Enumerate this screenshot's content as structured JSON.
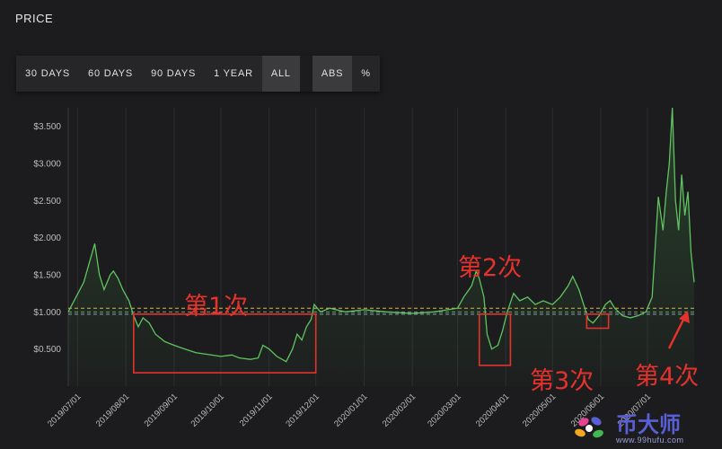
{
  "header": {
    "title": "PRICE"
  },
  "toolbar": {
    "ranges": [
      "30 DAYS",
      "60 DAYS",
      "90 DAYS",
      "1 YEAR",
      "ALL"
    ],
    "active_range": "ALL",
    "modes": [
      "ABS",
      "%"
    ],
    "active_mode": "ABS"
  },
  "chart_data": {
    "type": "line",
    "x_start": "2019-06-25",
    "x_end": "2020-07-31",
    "x_tick_labels": [
      "2019/07/01",
      "2019/08/01",
      "2019/09/01",
      "2019/10/01",
      "2019/11/01",
      "2019/12/01",
      "2020/01/01",
      "2020/02/01",
      "2020/03/01",
      "2020/04/01",
      "2020/05/01",
      "2020/06/01",
      "2020/07/01"
    ],
    "ylim": [
      0,
      3.75
    ],
    "y_ticks": [
      0.5,
      1.0,
      1.5,
      2.0,
      2.5,
      3.0,
      3.5
    ],
    "y_tick_labels": [
      "$0.500",
      "$1.000",
      "$1.500",
      "$2.000",
      "$2.500",
      "$3.000",
      "$3.500"
    ],
    "line_color": "#5fc35f",
    "reference_lines": [
      {
        "value": 1.05,
        "color": "#d9b84a"
      },
      {
        "value": 1.0,
        "color": "#6f9e6f"
      },
      {
        "value": 0.97,
        "color": "#8fa3bf"
      }
    ],
    "series": [
      {
        "values": [
          [
            "2019-06-25",
            1.0
          ],
          [
            "2019-07-05",
            1.4
          ],
          [
            "2019-07-12",
            1.92
          ],
          [
            "2019-07-15",
            1.5
          ],
          [
            "2019-07-18",
            1.3
          ],
          [
            "2019-07-22",
            1.5
          ],
          [
            "2019-07-24",
            1.55
          ],
          [
            "2019-07-27",
            1.45
          ],
          [
            "2019-07-30",
            1.3
          ],
          [
            "2019-08-03",
            1.15
          ],
          [
            "2019-08-06",
            0.95
          ],
          [
            "2019-08-09",
            0.8
          ],
          [
            "2019-08-12",
            0.92
          ],
          [
            "2019-08-16",
            0.85
          ],
          [
            "2019-08-20",
            0.7
          ],
          [
            "2019-08-26",
            0.6
          ],
          [
            "2019-09-01",
            0.55
          ],
          [
            "2019-09-08",
            0.5
          ],
          [
            "2019-09-15",
            0.45
          ],
          [
            "2019-09-22",
            0.43
          ],
          [
            "2019-10-01",
            0.4
          ],
          [
            "2019-10-08",
            0.42
          ],
          [
            "2019-10-13",
            0.38
          ],
          [
            "2019-10-20",
            0.36
          ],
          [
            "2019-10-25",
            0.38
          ],
          [
            "2019-10-28",
            0.55
          ],
          [
            "2019-11-01",
            0.5
          ],
          [
            "2019-11-06",
            0.4
          ],
          [
            "2019-11-12",
            0.33
          ],
          [
            "2019-11-16",
            0.5
          ],
          [
            "2019-11-19",
            0.7
          ],
          [
            "2019-11-22",
            0.62
          ],
          [
            "2019-11-25",
            0.8
          ],
          [
            "2019-11-28",
            0.9
          ],
          [
            "2019-11-30",
            1.1
          ],
          [
            "2019-12-04",
            1.0
          ],
          [
            "2019-12-10",
            1.05
          ],
          [
            "2019-12-20",
            1.0
          ],
          [
            "2020-01-01",
            1.03
          ],
          [
            "2020-01-15",
            1.0
          ],
          [
            "2020-02-01",
            0.98
          ],
          [
            "2020-02-15",
            1.0
          ],
          [
            "2020-03-01",
            1.05
          ],
          [
            "2020-03-05",
            1.2
          ],
          [
            "2020-03-10",
            1.35
          ],
          [
            "2020-03-13",
            1.55
          ],
          [
            "2020-03-15",
            1.45
          ],
          [
            "2020-03-18",
            1.2
          ],
          [
            "2020-03-20",
            0.7
          ],
          [
            "2020-03-23",
            0.5
          ],
          [
            "2020-03-27",
            0.55
          ],
          [
            "2020-03-30",
            0.75
          ],
          [
            "2020-04-02",
            1.0
          ],
          [
            "2020-04-06",
            1.25
          ],
          [
            "2020-04-10",
            1.15
          ],
          [
            "2020-04-15",
            1.2
          ],
          [
            "2020-04-20",
            1.1
          ],
          [
            "2020-04-25",
            1.15
          ],
          [
            "2020-05-01",
            1.1
          ],
          [
            "2020-05-06",
            1.2
          ],
          [
            "2020-05-11",
            1.35
          ],
          [
            "2020-05-14",
            1.48
          ],
          [
            "2020-05-18",
            1.3
          ],
          [
            "2020-05-21",
            1.1
          ],
          [
            "2020-05-24",
            0.9
          ],
          [
            "2020-05-27",
            0.85
          ],
          [
            "2020-05-31",
            0.95
          ],
          [
            "2020-06-04",
            1.1
          ],
          [
            "2020-06-07",
            1.15
          ],
          [
            "2020-06-10",
            1.05
          ],
          [
            "2020-06-15",
            0.95
          ],
          [
            "2020-06-20",
            0.92
          ],
          [
            "2020-06-25",
            0.95
          ],
          [
            "2020-06-30",
            1.0
          ],
          [
            "2020-07-04",
            1.2
          ],
          [
            "2020-07-08",
            2.55
          ],
          [
            "2020-07-11",
            2.1
          ],
          [
            "2020-07-13",
            2.6
          ],
          [
            "2020-07-15",
            3.0
          ],
          [
            "2020-07-17",
            3.75
          ],
          [
            "2020-07-19",
            2.5
          ],
          [
            "2020-07-21",
            2.1
          ],
          [
            "2020-07-23",
            2.85
          ],
          [
            "2020-07-25",
            2.3
          ],
          [
            "2020-07-27",
            2.62
          ],
          [
            "2020-07-29",
            1.8
          ],
          [
            "2020-07-31",
            1.4
          ]
        ]
      }
    ],
    "annotations": [
      {
        "text": "第1次",
        "box": {
          "x0": "2019-08-06",
          "x1": "2019-12-01",
          "y0": 0.18,
          "y1": 0.97
        }
      },
      {
        "text": "第2次",
        "box": {
          "x0": "2020-03-15",
          "x1": "2020-04-04",
          "y0": 0.28,
          "y1": 0.97
        }
      },
      {
        "text": "第3次",
        "box": {
          "x0": "2020-05-23",
          "x1": "2020-06-06",
          "y0": 0.78,
          "y1": 0.97
        }
      },
      {
        "text": "第4次"
      }
    ]
  },
  "watermark": {
    "name": "币大师",
    "url": "www.99hufu.com"
  }
}
